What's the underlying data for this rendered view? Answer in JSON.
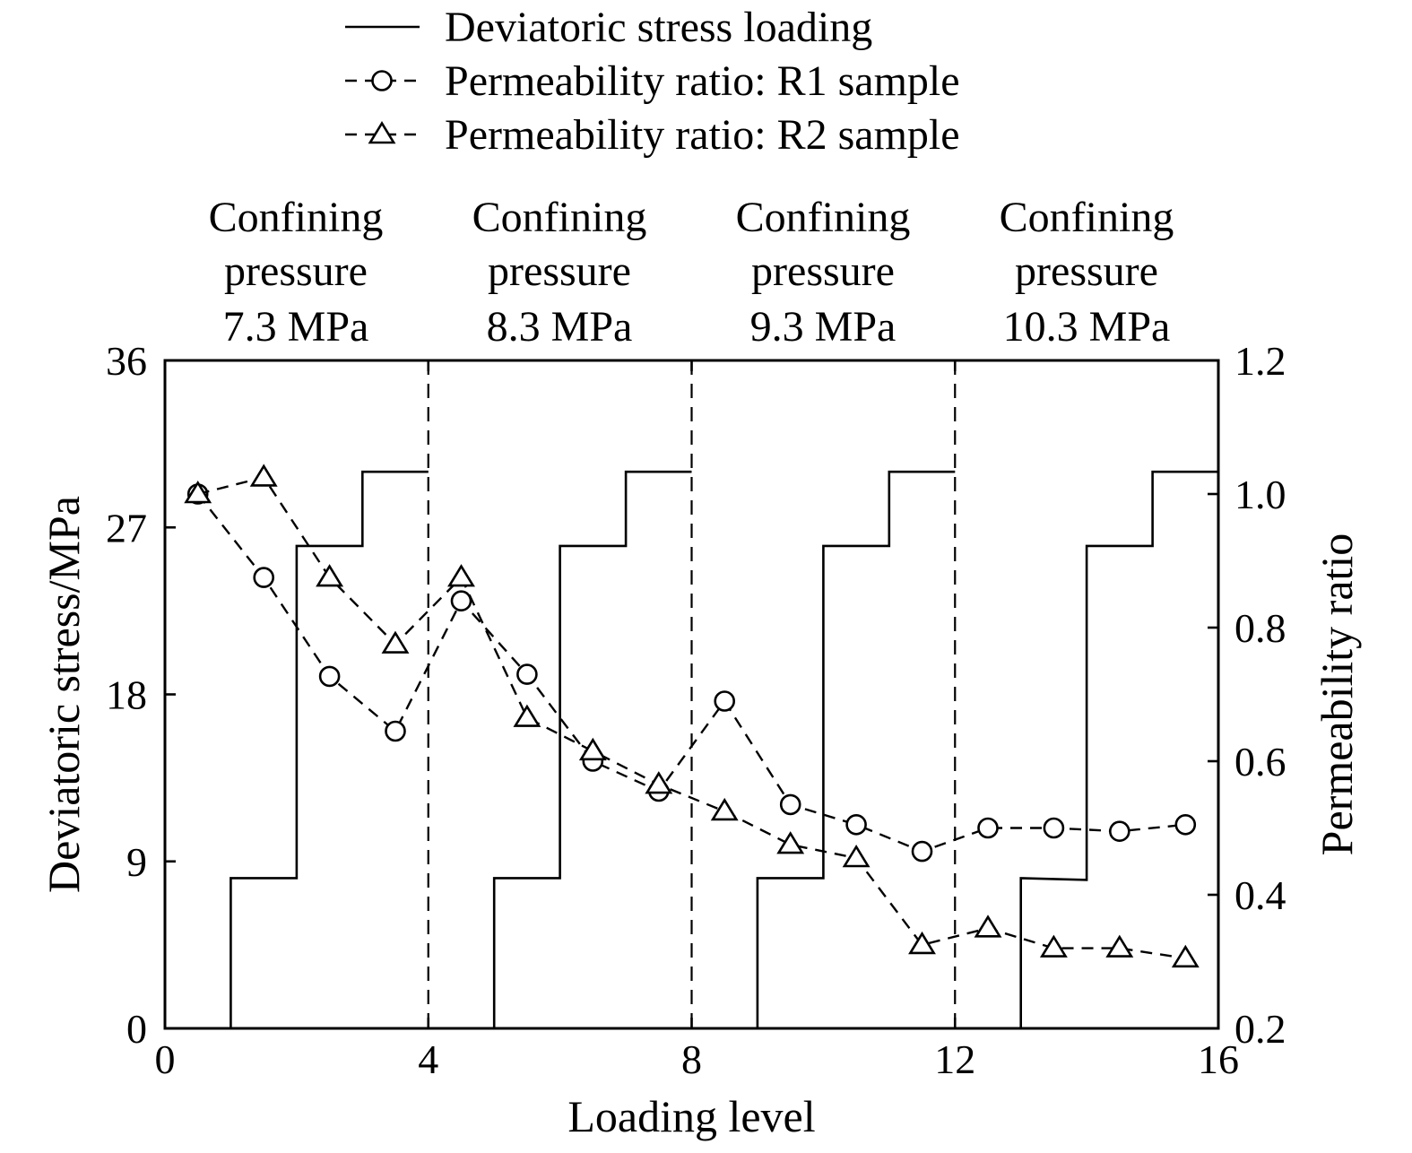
{
  "chart_data": {
    "type": "line",
    "x_axis": {
      "label": "Loading level",
      "range": [
        0,
        16
      ],
      "ticks": [
        "0",
        "4",
        "8",
        "12",
        "16"
      ]
    },
    "y_left": {
      "label": "Deviatoric stress/MPa",
      "range": [
        0,
        36
      ],
      "ticks": [
        "0",
        "9",
        "18",
        "27",
        "36"
      ]
    },
    "y_right": {
      "label": "Permeability ratio",
      "range": [
        0.2,
        1.2
      ],
      "ticks": [
        "0.2",
        "0.4",
        "0.6",
        "0.8",
        "1.0",
        "1.2"
      ]
    },
    "legend": [
      {
        "label": "Deviatoric stress loading",
        "style": "solid"
      },
      {
        "label": "Permeability ratio: R1 sample",
        "style": "dashed-circle"
      },
      {
        "label": "Permeability ratio: R2 sample",
        "style": "dashed-triangle"
      }
    ],
    "regions": [
      {
        "line1": "Confining",
        "line2": "pressure",
        "line3": "7.3 MPa"
      },
      {
        "line1": "Confining",
        "line2": "pressure",
        "line3": "8.3 MPa"
      },
      {
        "line1": "Confining",
        "line2": "pressure",
        "line3": "9.3 MPa"
      },
      {
        "line1": "Confining",
        "line2": "pressure",
        "line3": "10.3 MPa"
      }
    ],
    "region_boundaries": [
      4,
      8,
      12
    ],
    "stress_steps": [
      [
        [
          0,
          0
        ],
        [
          1,
          0
        ],
        [
          1,
          8.1
        ],
        [
          2,
          8.1
        ],
        [
          2,
          26
        ],
        [
          3,
          26
        ],
        [
          3,
          30
        ],
        [
          4,
          30
        ]
      ],
      [
        [
          4,
          0
        ],
        [
          5,
          0
        ],
        [
          5,
          8.1
        ],
        [
          6,
          8.1
        ],
        [
          6,
          26
        ],
        [
          7,
          26
        ],
        [
          7,
          30
        ],
        [
          8,
          30
        ]
      ],
      [
        [
          8,
          0
        ],
        [
          9,
          0
        ],
        [
          9,
          8.1
        ],
        [
          10,
          8.1
        ],
        [
          10,
          26
        ],
        [
          11,
          26
        ],
        [
          11,
          30
        ],
        [
          12,
          30
        ]
      ],
      [
        [
          12,
          0
        ],
        [
          13,
          0
        ],
        [
          13,
          8.1
        ],
        [
          14,
          8.0
        ],
        [
          14,
          26
        ],
        [
          15,
          26
        ],
        [
          15,
          30
        ],
        [
          16,
          30
        ]
      ]
    ],
    "series": [
      {
        "name": "Permeability ratio: R1 sample",
        "marker": "circle",
        "x": [
          0.5,
          1.5,
          2.5,
          3.5,
          4.5,
          5.5,
          6.5,
          7.5,
          8.5,
          9.5,
          10.5,
          11.5,
          12.5,
          13.5,
          14.5,
          15.5
        ],
        "y": [
          1.0,
          0.875,
          0.727,
          0.645,
          0.84,
          0.73,
          0.6,
          0.555,
          0.69,
          0.535,
          0.505,
          0.465,
          0.5,
          0.5,
          0.495,
          0.505
        ]
      },
      {
        "name": "Permeability ratio: R2 sample",
        "marker": "triangle",
        "x": [
          0.5,
          1.5,
          2.5,
          3.5,
          4.5,
          5.5,
          6.5,
          7.5,
          8.5,
          9.5,
          10.5,
          11.5,
          12.5,
          13.5,
          14.5,
          15.5
        ],
        "y": [
          1.0,
          1.025,
          0.875,
          0.775,
          0.875,
          0.665,
          0.615,
          0.565,
          0.525,
          0.475,
          0.455,
          0.325,
          0.35,
          0.32,
          0.32,
          0.305
        ]
      }
    ]
  }
}
